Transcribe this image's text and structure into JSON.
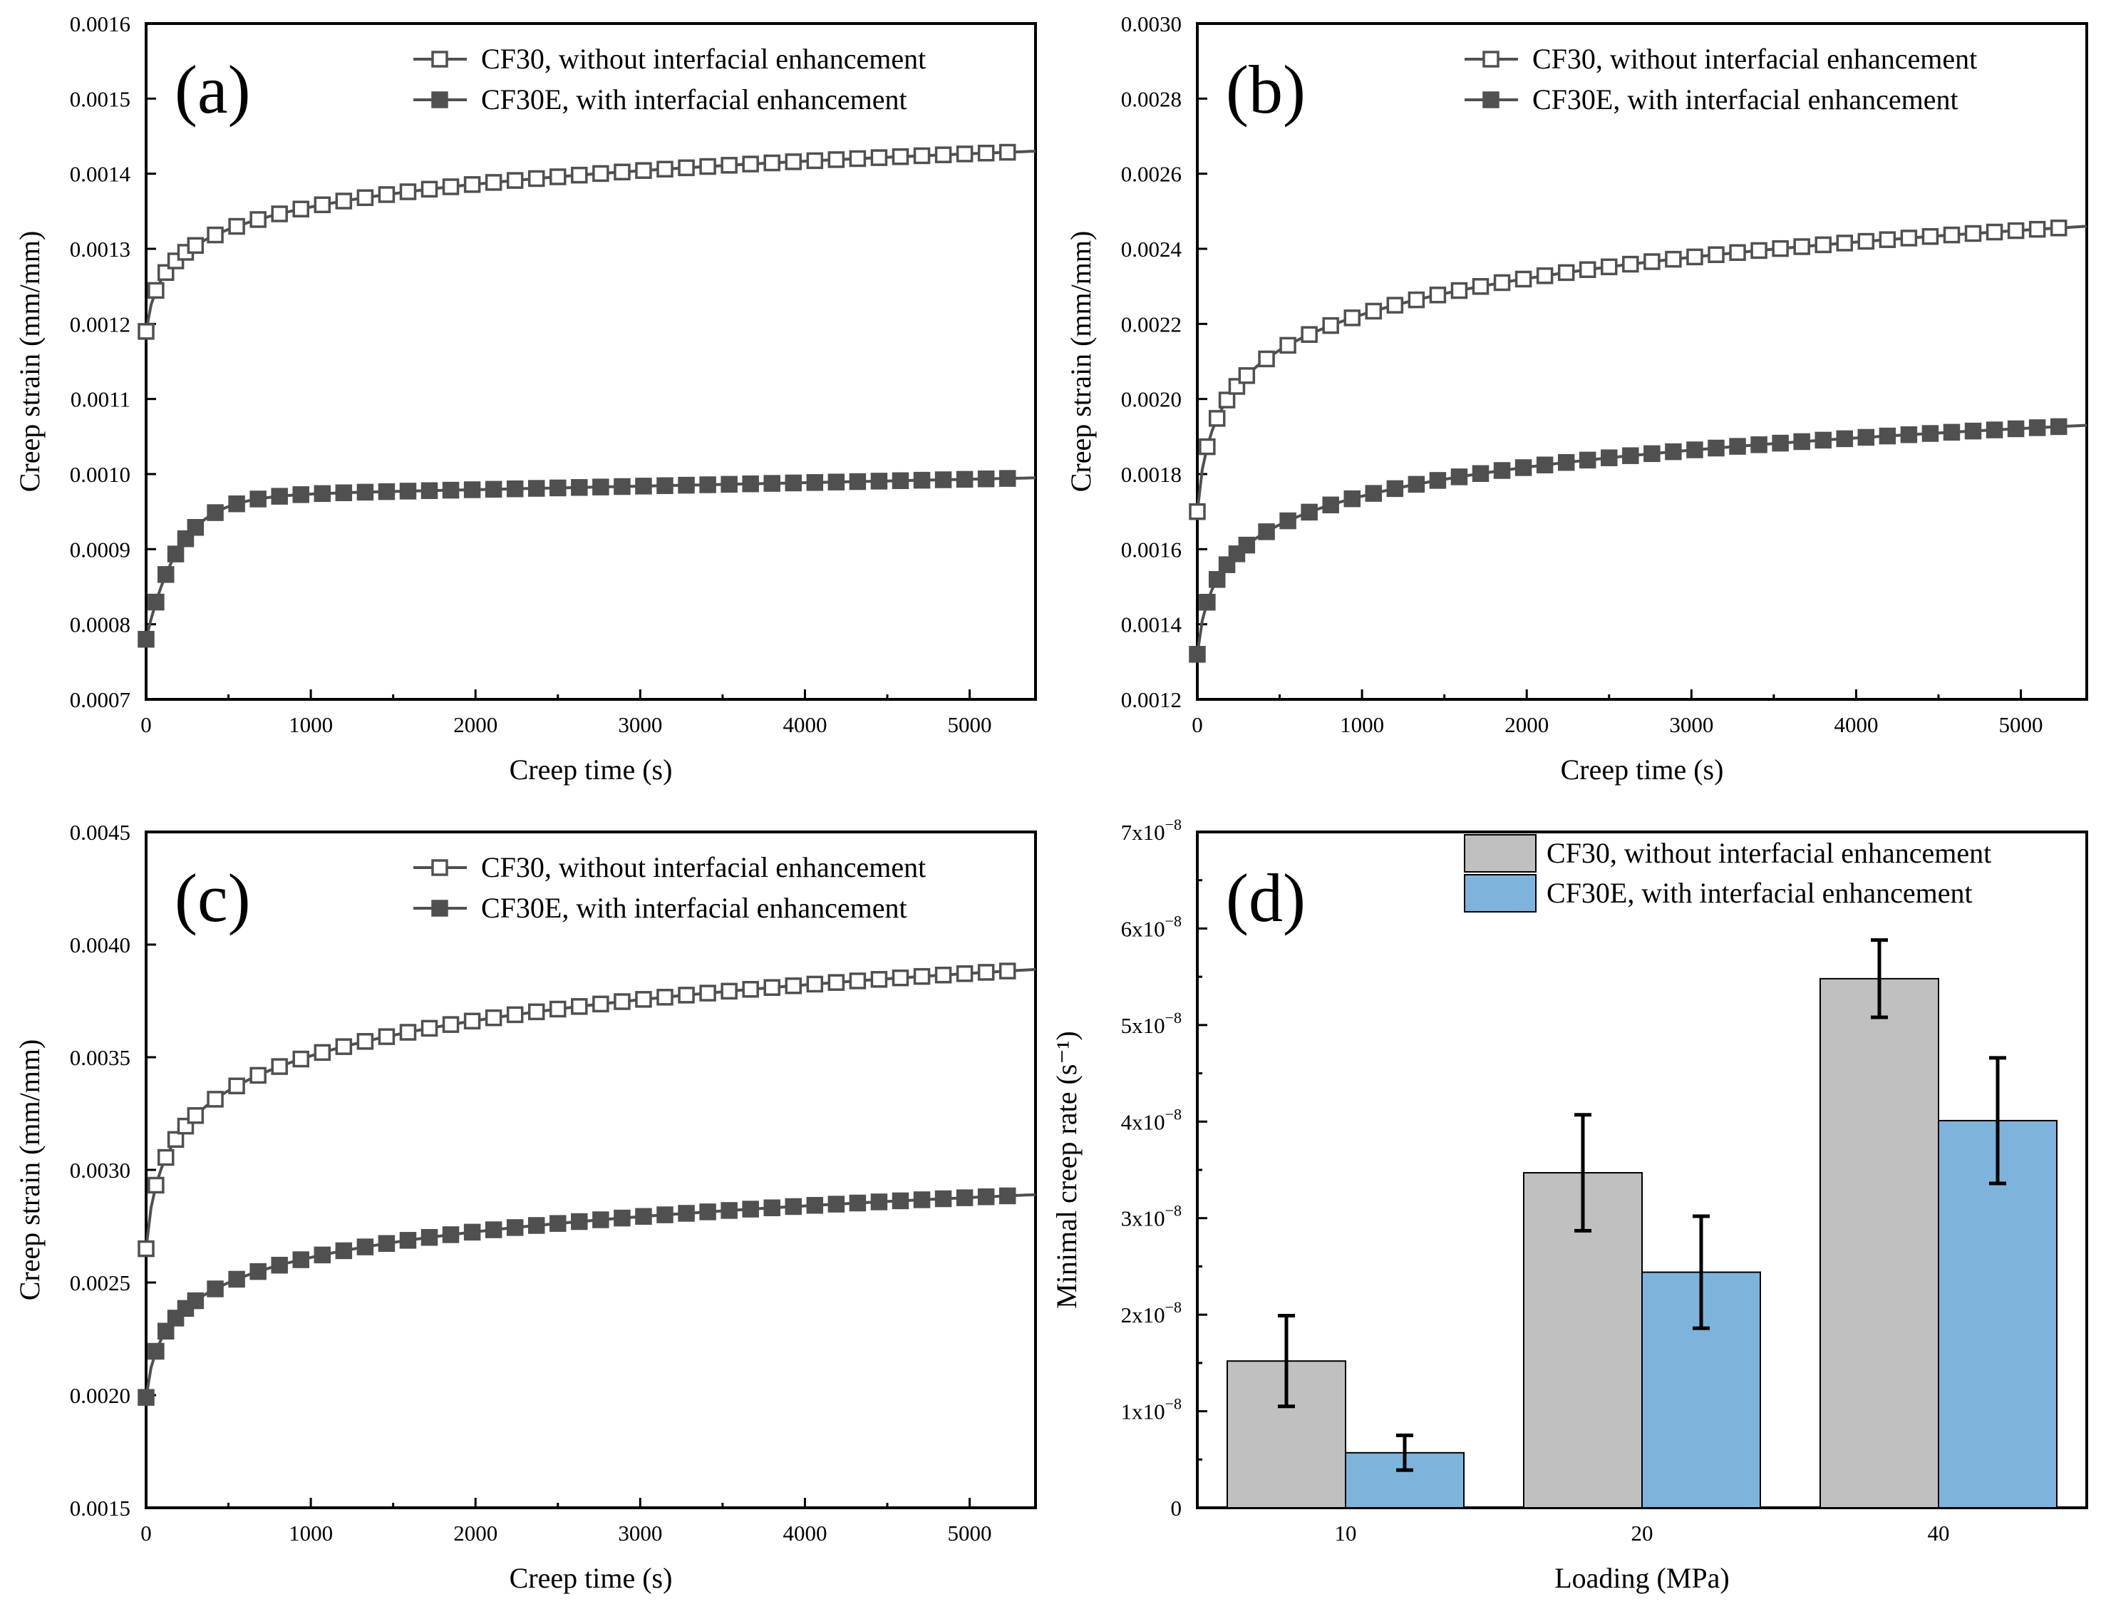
{
  "colors": {
    "line": "#505050",
    "bar_cf30": "#c0c0c0",
    "bar_cf30e": "#7eb4dc",
    "error": "#000000"
  },
  "chart_data": [
    {
      "panel": "(a)",
      "type": "line",
      "xlabel": "Creep time (s)",
      "ylabel": "Creep strain (mm/mm)",
      "xlim": [
        0,
        5400
      ],
      "ylim": [
        0.0007,
        0.0016
      ],
      "xticks": [
        0,
        1000,
        2000,
        3000,
        4000,
        5000
      ],
      "yticks": [
        "0.0007",
        "0.0008",
        "0.0009",
        "0.0010",
        "0.0011",
        "0.0012",
        "0.0013",
        "0.0014",
        "0.0015",
        "0.0016"
      ],
      "legend_position": "top-right",
      "series": [
        {
          "name": "CF30, without interfacial enhancement",
          "marker": "open-square",
          "y0": 0.00119,
          "a": 5.5e-05,
          "b": 0.00024
        },
        {
          "name": "CF30E, with interfacial enhancement",
          "marker": "filled-square",
          "y0": 0.00078,
          "a": 0.00019,
          "b": 2.5e-05,
          "tau": 200
        }
      ]
    },
    {
      "panel": "(b)",
      "type": "line",
      "xlabel": "Creep time (s)",
      "ylabel": "Creep strain (mm/mm)",
      "xlim": [
        0,
        5400
      ],
      "ylim": [
        0.0012,
        0.003
      ],
      "xticks": [
        0,
        1000,
        2000,
        3000,
        4000,
        5000
      ],
      "yticks": [
        "0.0012",
        "0.0014",
        "0.0016",
        "0.0018",
        "0.0020",
        "0.0022",
        "0.0024",
        "0.0026",
        "0.0028",
        "0.0030"
      ],
      "legend_position": "top-right",
      "series": [
        {
          "name": "CF30, without interfacial enhancement",
          "marker": "open-square",
          "y0": 0.0017,
          "a": 0.00011,
          "b": 0.00076
        },
        {
          "name": "CF30E, with interfacial enhancement",
          "marker": "filled-square",
          "y0": 0.00132,
          "a": 9e-05,
          "b": 0.00061
        }
      ]
    },
    {
      "panel": "(c)",
      "type": "line",
      "xlabel": "Creep time (s)",
      "ylabel": "Creep strain (mm/mm)",
      "xlim": [
        0,
        5400
      ],
      "ylim": [
        0.0015,
        0.0045
      ],
      "xticks": [
        0,
        1000,
        2000,
        3000,
        4000,
        5000
      ],
      "yticks": [
        "0.0015",
        "0.0020",
        "0.0025",
        "0.0030",
        "0.0035",
        "0.0040",
        "0.0045"
      ],
      "legend_position": "top-right",
      "series": [
        {
          "name": "CF30, without interfacial enhancement",
          "marker": "open-square",
          "y0": 0.00265,
          "a": 0.0001,
          "b": 0.00124
        },
        {
          "name": "CF30E, with interfacial enhancement",
          "marker": "filled-square",
          "y0": 0.00199,
          "a": 9e-05,
          "b": 0.0009
        }
      ]
    },
    {
      "panel": "(d)",
      "type": "bar",
      "xlabel": "Loading (MPa)",
      "ylabel": "Minimal creep rate (s⁻¹)",
      "categories": [
        "10",
        "20",
        "40"
      ],
      "ylim": [
        0,
        7e-08
      ],
      "yticks": [
        {
          "value": 0,
          "mantissa": "0",
          "exp": ""
        },
        {
          "value": 1e-08,
          "mantissa": "1x10",
          "exp": "−8"
        },
        {
          "value": 2e-08,
          "mantissa": "2x10",
          "exp": "−8"
        },
        {
          "value": 3e-08,
          "mantissa": "3x10",
          "exp": "−8"
        },
        {
          "value": 4e-08,
          "mantissa": "4x10",
          "exp": "−8"
        },
        {
          "value": 5e-08,
          "mantissa": "5x10",
          "exp": "−8"
        },
        {
          "value": 6e-08,
          "mantissa": "6x10",
          "exp": "−8"
        },
        {
          "value": 7e-08,
          "mantissa": "7x10",
          "exp": "−8"
        }
      ],
      "legend_position": "top-right",
      "series": [
        {
          "name": "CF30, without interfacial enhancement",
          "values": [
            1.52e-08,
            3.47e-08,
            5.48e-08
          ],
          "errors": [
            4.7e-09,
            6e-09,
            4e-09
          ]
        },
        {
          "name": "CF30E, with interfacial enhancement",
          "values": [
            5.7e-09,
            2.44e-08,
            4.01e-08
          ],
          "errors": [
            1.8e-09,
            5.8e-09,
            6.5e-09
          ]
        }
      ]
    }
  ]
}
